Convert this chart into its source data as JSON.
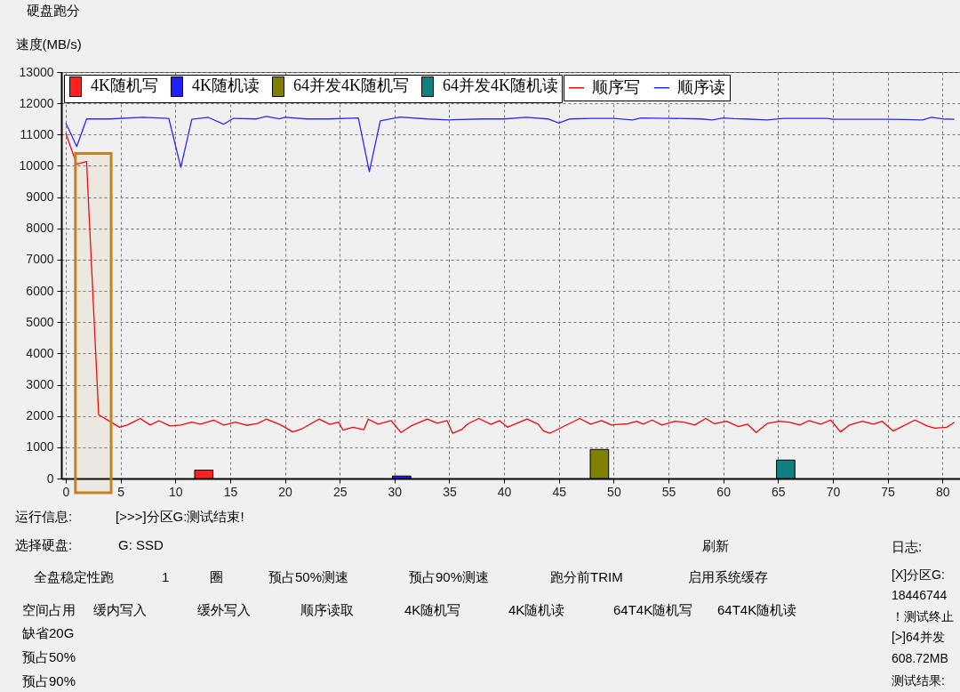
{
  "chart_data": {
    "type": "line",
    "title": "硬盘跑分",
    "ylabel": "速度(MB/s)",
    "xlim": [
      0,
      81.2
    ],
    "ylim": [
      0,
      13000
    ],
    "xticks": [
      0,
      5,
      10,
      15,
      20,
      25,
      30,
      35,
      40,
      45,
      50,
      55,
      60,
      65,
      70,
      75,
      80
    ],
    "yticks": [
      0,
      1000,
      2000,
      3000,
      4000,
      5000,
      6000,
      7000,
      8000,
      9000,
      10000,
      11000,
      12000,
      13000
    ],
    "grid": true,
    "legend": "top left",
    "series": [
      {
        "name": "4K随机写",
        "type": "bar",
        "color": "#ff2020",
        "x": [
          12.6
        ],
        "values": [
          270
        ]
      },
      {
        "name": "4K随机读",
        "type": "bar",
        "color": "#2020ff",
        "x": [
          30.65
        ],
        "values": [
          80
        ]
      },
      {
        "name": "64并发4K随机写",
        "type": "bar",
        "color": "#808000",
        "x": [
          48.7
        ],
        "values": [
          930
        ]
      },
      {
        "name": "64并发4K随机读",
        "type": "bar",
        "color": "#108080",
        "x": [
          65.7
        ],
        "values": [
          590
        ]
      },
      {
        "name": "顺序写",
        "color": "#ff0000",
        "x": [
          0,
          1,
          1.9,
          2.05,
          3.0,
          4.0,
          4.9,
          5.6,
          6.8,
          7.7,
          8.5,
          9.5,
          10.5,
          11.5,
          12.3,
          13.5,
          14.4,
          15.5,
          16.5,
          17.5,
          18.3,
          19.5,
          20.0,
          20.7,
          21.5,
          23.1,
          24.1,
          24.9,
          25.3,
          26.2,
          27.2,
          27.6,
          28.5,
          29.7,
          30.6,
          31.5,
          33.0,
          33.9,
          34.8,
          35.3,
          36.1,
          36.7,
          37.7,
          38.8,
          39.6,
          40.3,
          42.1,
          43.1,
          43.6,
          44.2,
          46.9,
          47.9,
          48.9,
          49.8,
          50.4,
          51.3,
          52.1,
          52.7,
          53.5,
          54.4,
          55.6,
          56.4,
          57.4,
          58.4,
          59.2,
          60.3,
          61.4,
          62.2,
          63.0,
          64.0,
          65.1,
          66.0,
          67.0,
          67.8,
          68.9,
          69.8,
          70.7,
          71.5,
          72.7,
          73.7,
          74.5,
          75.5,
          77.5,
          78.6,
          79.3,
          80.4,
          81.1
        ],
        "values": [
          11040,
          10050,
          10140,
          9000,
          2040,
          1830,
          1640,
          1710,
          1920,
          1710,
          1850,
          1680,
          1710,
          1800,
          1740,
          1870,
          1710,
          1800,
          1700,
          1760,
          1900,
          1730,
          1640,
          1490,
          1580,
          1900,
          1730,
          1800,
          1550,
          1640,
          1560,
          1900,
          1740,
          1850,
          1470,
          1680,
          1900,
          1770,
          1850,
          1450,
          1560,
          1750,
          1920,
          1730,
          1850,
          1640,
          1900,
          1740,
          1520,
          1450,
          1920,
          1740,
          1850,
          1710,
          1730,
          1750,
          1830,
          1740,
          1870,
          1710,
          1830,
          1800,
          1710,
          1920,
          1750,
          1830,
          1660,
          1740,
          1470,
          1760,
          1830,
          1800,
          1710,
          1850,
          1740,
          1870,
          1490,
          1710,
          1830,
          1740,
          1830,
          1520,
          1870,
          1680,
          1610,
          1640,
          1800
        ]
      },
      {
        "name": "顺序读",
        "color": "#2828ff",
        "x": [
          0,
          1,
          1.9,
          4,
          7,
          9.4,
          10.5,
          11.5,
          13,
          14.4,
          15.3,
          17.4,
          18.3,
          19.5,
          20,
          22,
          24,
          26.7,
          27.7,
          28.7,
          30.5,
          33,
          35,
          38,
          40,
          42,
          44,
          45,
          46,
          48,
          50,
          51.7,
          52.5,
          55,
          58,
          59,
          60,
          61,
          62,
          64,
          65.5,
          67,
          69.5,
          70,
          72,
          75,
          78.2,
          79,
          80,
          81.1
        ],
        "values": [
          11370,
          10620,
          11500,
          11500,
          11550,
          11520,
          9950,
          11490,
          11550,
          11330,
          11520,
          11500,
          11580,
          11500,
          11550,
          11500,
          11500,
          11530,
          9810,
          11440,
          11560,
          11500,
          11470,
          11500,
          11500,
          11550,
          11500,
          11370,
          11500,
          11520,
          11520,
          11470,
          11530,
          11520,
          11500,
          11470,
          11530,
          11510,
          11500,
          11470,
          11520,
          11520,
          11520,
          11490,
          11490,
          11490,
          11470,
          11550,
          11500,
          11490
        ]
      }
    ],
    "bands": [
      {
        "axis": "x",
        "from": 0.88,
        "to": 4.14,
        "color": "#c58020"
      }
    ],
    "annotations": [
      "运行信息:",
      "[>>>]分区G:测试结束!",
      "选择硬盘:",
      "G: SSD",
      "刷新",
      "日志:",
      "全盘稳定性跑",
      "1",
      "圈",
      "预占50%测速",
      "预占90%测速",
      "跑分前TRIM",
      "启用系统缓存",
      "空间占用",
      "缓内写入",
      "缓外写入",
      "顺序读取",
      "4K随机写",
      "4K随机读",
      "64T4K随机写",
      "64T4K随机读",
      "缺省20G",
      "预占50%",
      "预占90%",
      "[X]分区G:",
      "18446744",
      "！测试终止",
      "[>]64并发",
      "608.72MB",
      "测试结果:"
    ]
  }
}
